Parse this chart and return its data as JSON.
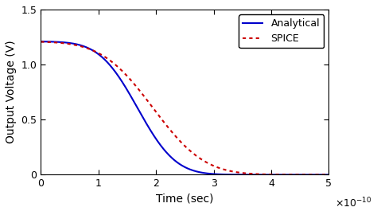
{
  "title": "",
  "xlabel": "Time (sec)",
  "ylabel": "Output Voltage (V)",
  "xlim": [
    0,
    5e-10
  ],
  "ylim": [
    0,
    1.5
  ],
  "xticks": [
    0,
    1e-10,
    2e-10,
    3e-10,
    4e-10,
    5e-10
  ],
  "xtick_labels": [
    "0",
    "1",
    "2",
    "3",
    "4",
    "5"
  ],
  "yticks": [
    0,
    0.5,
    1.0,
    1.5
  ],
  "analytical_color": "#0000cc",
  "spice_color": "#cc0000",
  "analytical_label": "Analytical",
  "spice_label": "SPICE",
  "V0": 1.21,
  "background_color": "#ffffff",
  "legend_fontsize": 9,
  "axis_fontsize": 10,
  "tick_fontsize": 9,
  "linewidth": 1.5
}
